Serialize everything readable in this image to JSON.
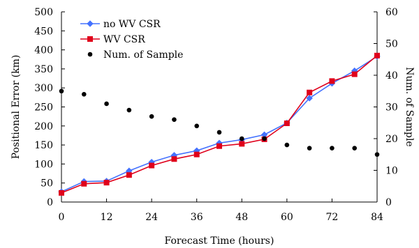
{
  "chart_data": {
    "type": "line",
    "title": "",
    "xlabel": "Forecast Time (hours)",
    "ylabel": "Positional Error (km)",
    "y2label": "Num. of Sample",
    "xlim": [
      0,
      84
    ],
    "ylim": [
      0,
      500
    ],
    "y2lim": [
      0,
      60
    ],
    "xticks": [
      "0",
      "12",
      "24",
      "36",
      "48",
      "60",
      "72",
      "84"
    ],
    "yticks": [
      "0",
      "50",
      "100",
      "150",
      "200",
      "250",
      "300",
      "350",
      "400",
      "450",
      "500"
    ],
    "y2ticks": [
      "0",
      "10",
      "20",
      "30",
      "40",
      "50",
      "60"
    ],
    "grid": false,
    "legend_position": "top-left",
    "series": [
      {
        "name": "no WV CSR",
        "axis": "left",
        "color": "#4472ff",
        "marker": "diamond",
        "x": [
          0,
          6,
          12,
          18,
          24,
          30,
          36,
          42,
          48,
          54,
          60,
          66,
          72,
          78,
          84
        ],
        "values": [
          27,
          54,
          55,
          82,
          105,
          123,
          135,
          155,
          164,
          177,
          208,
          273,
          312,
          345,
          383
        ]
      },
      {
        "name": "WV CSR",
        "axis": "left",
        "color": "#e0001b",
        "marker": "square",
        "x": [
          0,
          6,
          12,
          18,
          24,
          30,
          36,
          42,
          48,
          54,
          60,
          66,
          72,
          78,
          84
        ],
        "values": [
          24,
          48,
          51,
          71,
          96,
          113,
          125,
          147,
          153,
          165,
          207,
          288,
          318,
          336,
          385
        ]
      },
      {
        "name": "Num. of Sample",
        "axis": "right",
        "color": "#000000",
        "marker": "circle",
        "x": [
          0,
          6,
          12,
          18,
          24,
          30,
          36,
          42,
          48,
          54,
          60,
          66,
          72,
          78,
          84
        ],
        "values": [
          35,
          34,
          31,
          29,
          27,
          26,
          24,
          22,
          20,
          20,
          18,
          17,
          17,
          17,
          15
        ]
      }
    ]
  }
}
